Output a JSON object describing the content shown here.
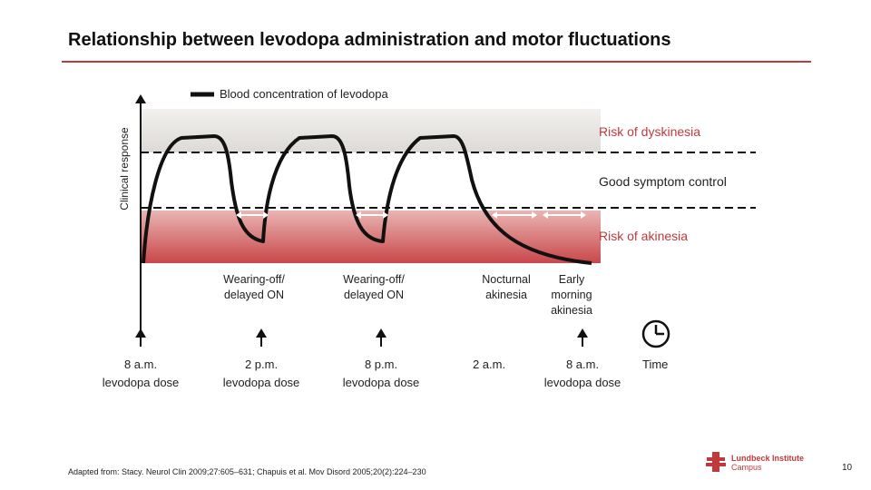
{
  "title": "Relationship between levodopa administration and motor fluctuations",
  "legend": {
    "label": "Blood concentration of levodopa"
  },
  "y_axis": {
    "label": "Clinical response"
  },
  "zones": {
    "dyskinesia": "Risk of dyskinesia",
    "good": "Good symptom control",
    "akinesia": "Risk of akinesia"
  },
  "episodes": [
    {
      "line1": "Wearing-off/",
      "line2": "delayed ON"
    },
    {
      "line1": "Wearing-off/",
      "line2": "delayed ON"
    },
    {
      "line1": "Nocturnal",
      "line2": "akinesia"
    },
    {
      "line1": "Early",
      "line2": "morning",
      "line3": "akinesia"
    }
  ],
  "time_axis": {
    "label": "Time",
    "marks": [
      {
        "time": "8 a.m.",
        "dose": "levodopa dose"
      },
      {
        "time": "2 p.m.",
        "dose": "levodopa dose"
      },
      {
        "time": "8 p.m.",
        "dose": "levodopa dose"
      },
      {
        "time": "2 a.m.",
        "dose": ""
      },
      {
        "time": "8 a.m.",
        "dose": "levodopa dose"
      }
    ]
  },
  "icons": {
    "time": "clock-icon",
    "logo": "lundbeck-logo-icon"
  },
  "colors": {
    "accent": "#c0393b",
    "akinesia_band": "#d98a8a",
    "dyskinesia_band": "#e6e4e1"
  },
  "source": "Adapted from: Stacy. Neurol Clin 2009;27:605–631; Chapuis et al. Mov Disord 2005;20(2):224–230",
  "logo": {
    "name": "Lundbeck Institute",
    "sub": "Campus"
  },
  "page_number": "10"
}
